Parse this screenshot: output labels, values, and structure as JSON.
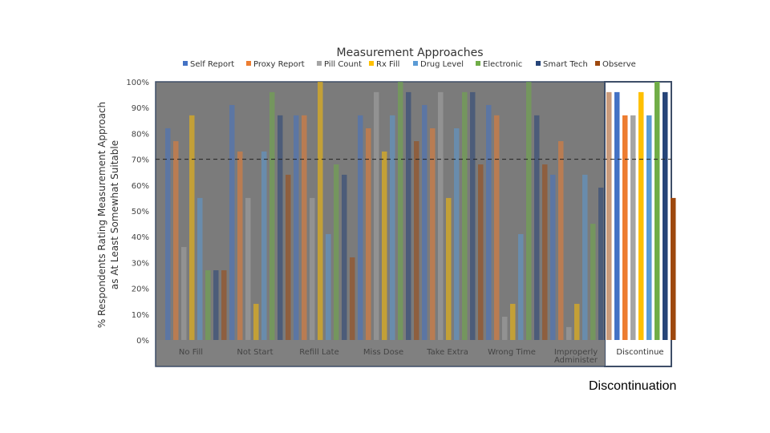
{
  "chart_data": {
    "type": "bar",
    "title": "Measurement Approaches",
    "ylabel_line1": "% Respondents Rating Measurement Approach",
    "ylabel_line2": "as At Least Somewhat Suitable",
    "ylim": [
      0,
      100
    ],
    "yticks": [
      "0%",
      "10%",
      "20%",
      "30%",
      "40%",
      "50%",
      "60%",
      "70%",
      "80%",
      "90%",
      "100%"
    ],
    "reference_line": 70,
    "legend_position": "top",
    "categories": [
      [
        "No Fill"
      ],
      [
        "Not Start"
      ],
      [
        "Refill Late"
      ],
      [
        "Miss Dose"
      ],
      [
        "Take Extra"
      ],
      [
        "Wrong Time"
      ],
      [
        "Improperly",
        "Administer"
      ],
      [
        "Discontinue"
      ]
    ],
    "highlighted_category": 7,
    "series": [
      {
        "name": "Self Report",
        "color": "#4472c4",
        "values": [
          82,
          91,
          87,
          87,
          91,
          91,
          64,
          96
        ]
      },
      {
        "name": "Proxy Report",
        "color": "#ed7d31",
        "values": [
          77,
          73,
          87,
          82,
          82,
          87,
          77,
          87
        ]
      },
      {
        "name": "Pill Count",
        "color": "#a5a5a5",
        "values": [
          36,
          55,
          55,
          96,
          96,
          9,
          5,
          87
        ]
      },
      {
        "name": "Rx Fill",
        "color": "#ffc000",
        "values": [
          87,
          14,
          100,
          73,
          55,
          14,
          14,
          96
        ]
      },
      {
        "name": "Drug Level",
        "color": "#5b9bd5",
        "values": [
          55,
          73,
          41,
          87,
          82,
          41,
          64,
          87
        ]
      },
      {
        "name": "Electronic",
        "color": "#70ad47",
        "values": [
          27,
          96,
          68,
          100,
          96,
          100,
          45,
          100
        ]
      },
      {
        "name": "Smart Tech",
        "color": "#264478",
        "values": [
          27,
          87,
          64,
          96,
          96,
          87,
          59,
          96
        ]
      },
      {
        "name": "Observe",
        "color": "#9e480e",
        "values": [
          27,
          64,
          32,
          77,
          68,
          68,
          96,
          55
        ]
      }
    ]
  },
  "caption": "Discontinuation"
}
